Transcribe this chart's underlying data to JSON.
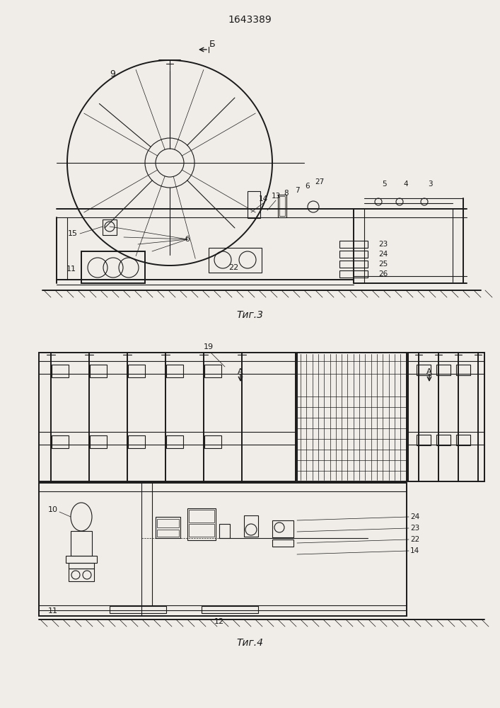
{
  "title": "1643389",
  "fig3_label": "Τиг.3",
  "fig4_label": "Τиг.4",
  "bg_color": "#f0ede8",
  "line_color": "#1a1a1a"
}
